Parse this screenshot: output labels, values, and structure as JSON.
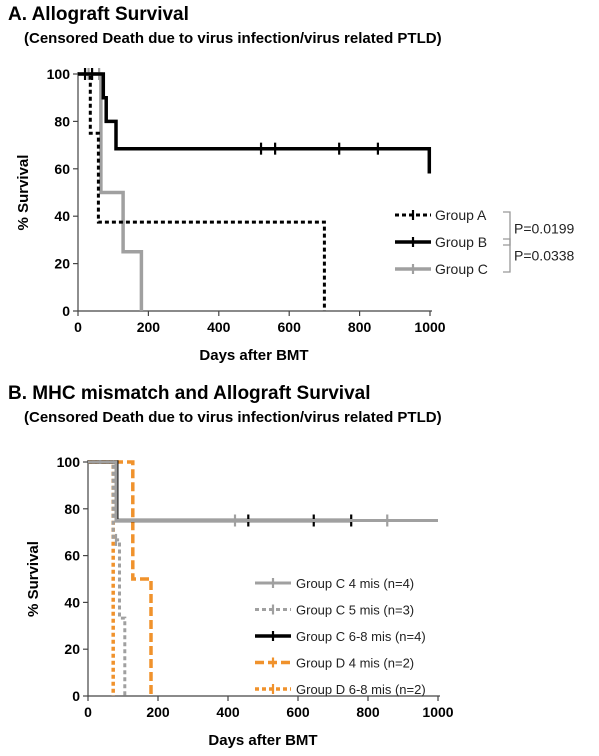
{
  "panel_a": {
    "title": "A.  Allograft Survival",
    "subtitle": "(Censored Death due to virus infection/virus related PTLD)"
  },
  "panel_b": {
    "title": "B.  MHC mismatch and Allograft Survival",
    "subtitle": "(Censored Death due to virus infection/virus related PTLD)"
  },
  "chart_data": [
    {
      "type": "line",
      "step": true,
      "title": "A.  Allograft Survival",
      "subtitle": "(Censored Death due to virus infection/virus related PTLD)",
      "xlabel": "Days after BMT",
      "ylabel": "% Survival",
      "xlim": [
        0,
        1000
      ],
      "ylim": [
        0,
        100
      ],
      "xticks": [
        0,
        200,
        400,
        600,
        800,
        1000
      ],
      "yticks": [
        0,
        20,
        40,
        60,
        80,
        100
      ],
      "grid": false,
      "legend_position": "right",
      "series": [
        {
          "name": "Group A",
          "color": "#000000",
          "dash": "dotted",
          "width": 3,
          "steps": [
            [
              0,
              100
            ],
            [
              35,
              100
            ],
            [
              35,
              75
            ],
            [
              58,
              75
            ],
            [
              58,
              37.5
            ],
            [
              700,
              37.5
            ],
            [
              700,
              0
            ]
          ],
          "censored": [
            [
              20,
              100
            ],
            [
              40,
              100
            ]
          ]
        },
        {
          "name": "Group B",
          "color": "#000000",
          "dash": "solid",
          "width": 3.5,
          "steps": [
            [
              0,
              100
            ],
            [
              72,
              100
            ],
            [
              72,
              90
            ],
            [
              80,
              90
            ],
            [
              80,
              80
            ],
            [
              108,
              80
            ],
            [
              108,
              68.5
            ],
            [
              998,
              68.5
            ],
            [
              998,
              58
            ]
          ],
          "censored": [
            [
              520,
              68.5
            ],
            [
              560,
              68.5
            ],
            [
              742,
              68.5
            ],
            [
              852,
              68.5
            ]
          ]
        },
        {
          "name": "Group C",
          "color": "#a0a0a0",
          "dash": "solid",
          "width": 3.5,
          "steps": [
            [
              0,
              100
            ],
            [
              65,
              100
            ],
            [
              65,
              50
            ],
            [
              128,
              50
            ],
            [
              128,
              25
            ],
            [
              180,
              25
            ],
            [
              180,
              0
            ]
          ],
          "censored": [
            [
              30,
              100
            ],
            [
              60,
              100
            ]
          ]
        }
      ],
      "annotations": [
        {
          "text": "P=0.0199",
          "between": [
            "Group A",
            "Group B"
          ]
        },
        {
          "text": "P=0.0338",
          "between": [
            "Group B",
            "Group C"
          ]
        }
      ]
    },
    {
      "type": "line",
      "step": true,
      "title": "B.  MHC mismatch and Allograft Survival",
      "subtitle": "(Censored Death due to virus infection/virus related PTLD)",
      "xlabel": "Days after BMT",
      "ylabel": "% Survival",
      "xlim": [
        0,
        1000
      ],
      "ylim": [
        0,
        100
      ],
      "xticks": [
        0,
        200,
        400,
        600,
        800,
        1000
      ],
      "yticks": [
        0,
        20,
        40,
        60,
        80,
        100
      ],
      "grid": false,
      "legend_position": "right",
      "series": [
        {
          "name": "Group C  4 mis (n=4)",
          "color": "#a0a0a0",
          "dash": "solid",
          "width": 3,
          "steps": [
            [
              0,
              100
            ],
            [
              80,
              100
            ],
            [
              80,
              75
            ],
            [
              1000,
              75
            ]
          ],
          "censored": [
            [
              420,
              75
            ],
            [
              855,
              75
            ]
          ]
        },
        {
          "name": "Group C  5 mis (n=3)",
          "color": "#a0a0a0",
          "dash": "dotted",
          "width": 3,
          "steps": [
            [
              0,
              100
            ],
            [
              72,
              100
            ],
            [
              72,
              66.7
            ],
            [
              90,
              66.7
            ],
            [
              90,
              33.3
            ],
            [
              105,
              33.3
            ],
            [
              105,
              0
            ]
          ],
          "censored": [
            [
              80,
              66.7
            ]
          ]
        },
        {
          "name": "Group C  6-8 mis (n=4)",
          "color": "#000000",
          "dash": "solid",
          "width": 3.5,
          "steps": [
            [
              0,
              100
            ],
            [
              82,
              100
            ],
            [
              82,
              75
            ],
            [
              752,
              75
            ]
          ],
          "censored": [
            [
              458,
              75
            ],
            [
              645,
              75
            ],
            [
              752,
              75
            ]
          ]
        },
        {
          "name": "Group D  4 mis (n=2)",
          "color": "#f0922c",
          "dash": "longdash",
          "width": 3.5,
          "steps": [
            [
              0,
              100
            ],
            [
              128,
              100
            ],
            [
              128,
              50
            ],
            [
              180,
              50
            ],
            [
              180,
              0
            ]
          ],
          "censored": []
        },
        {
          "name": "Group D  6-8 mis (n=2)",
          "color": "#f0922c",
          "dash": "dotted",
          "width": 3.5,
          "steps": [
            [
              0,
              100
            ],
            [
              72,
              100
            ],
            [
              72,
              0
            ]
          ],
          "censored": []
        }
      ]
    }
  ]
}
